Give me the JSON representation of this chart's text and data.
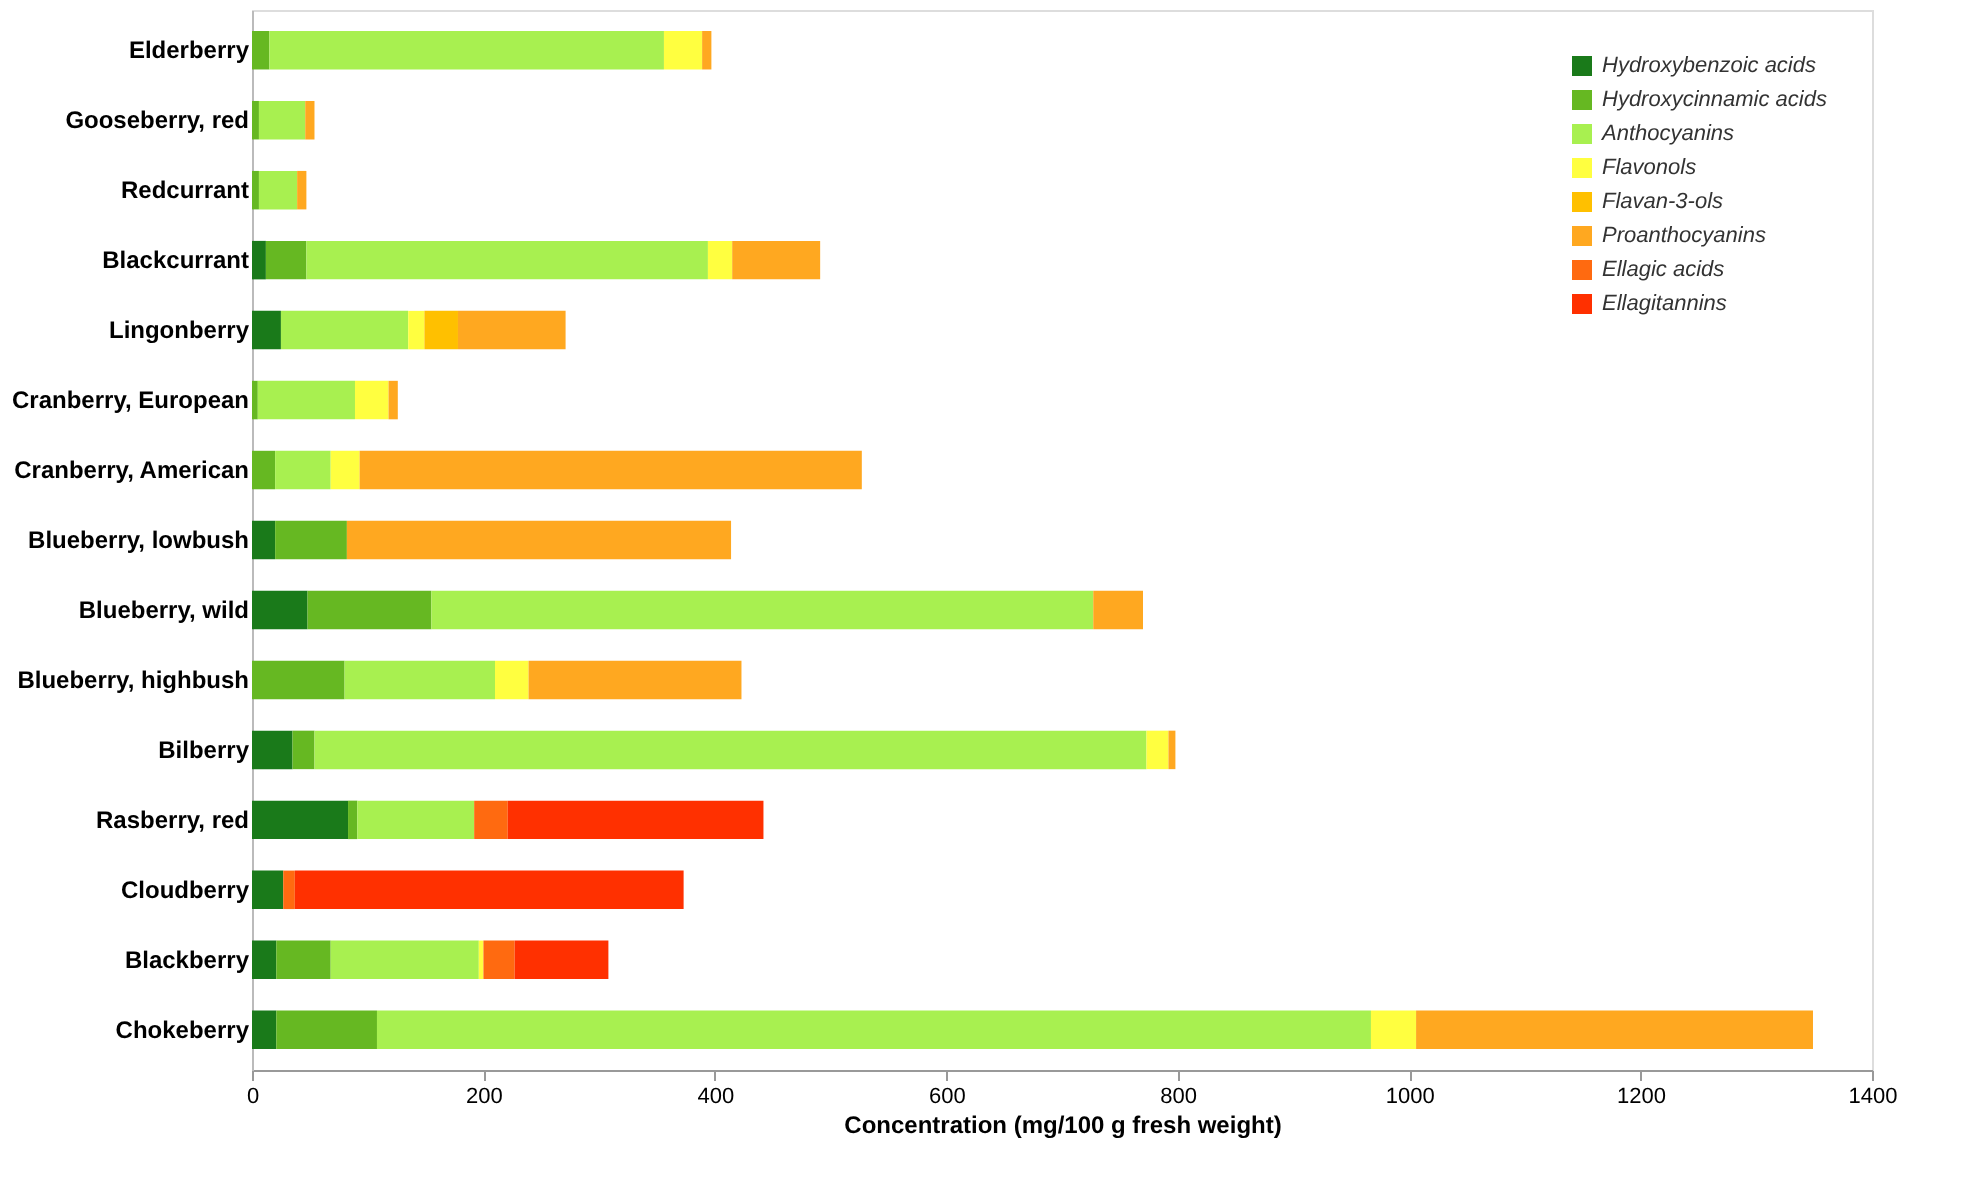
{
  "chart_data": {
    "type": "bar",
    "orientation": "horizontal",
    "stacked": true,
    "xlabel": "Concentration (mg/100 g fresh weight)",
    "categories": [
      "Elderberry",
      "Gooseberry, red",
      "Redcurrant",
      "Blackcurrant",
      "Lingonberry",
      "Cranberry, European",
      "Cranberry, American",
      "Blueberry, lowbush",
      "Blueberry, wild",
      "Blueberry, highbush",
      "Bilberry",
      "Rasberry, red",
      "Cloudberry",
      "Blackberry",
      "Chokeberry"
    ],
    "series": [
      {
        "name": "Hydroxybenzoic acids",
        "color": "#1a7a1a",
        "values": [
          null,
          null,
          null,
          12,
          25,
          null,
          null,
          20,
          48,
          null,
          35,
          83,
          27,
          21,
          21
        ]
      },
      {
        "name": "Hydroxycinnamic acids",
        "color": "#66b822",
        "values": [
          15,
          6,
          6,
          35,
          null,
          5,
          20,
          62,
          107,
          80,
          19,
          8,
          null,
          47,
          87
        ]
      },
      {
        "name": "Anthocyanins",
        "color": "#a8f050",
        "values": [
          341,
          40,
          33,
          347,
          110,
          84,
          48,
          null,
          572,
          130,
          719,
          101,
          null,
          128,
          859
        ]
      },
      {
        "name": "Flavonols",
        "color": "#ffff40",
        "values": [
          33,
          null,
          null,
          21,
          14,
          29,
          25,
          null,
          null,
          29,
          19,
          null,
          null,
          4,
          39
        ]
      },
      {
        "name": "Flavan-3-ols",
        "color": "#ffc000",
        "values": [
          null,
          null,
          null,
          null,
          29,
          null,
          null,
          null,
          null,
          null,
          null,
          null,
          null,
          null,
          null
        ]
      },
      {
        "name": "Proanthocyanins",
        "color": "#ffa820",
        "values": [
          8,
          8,
          8,
          76,
          93,
          8,
          434,
          332,
          43,
          184,
          6,
          null,
          null,
          null,
          343
        ]
      },
      {
        "name": "Ellagic acids",
        "color": "#ff6a10",
        "values": [
          null,
          null,
          null,
          null,
          null,
          null,
          null,
          null,
          null,
          null,
          null,
          29,
          10,
          27,
          null
        ]
      },
      {
        "name": "Ellagitannins",
        "color": "#ff3000",
        "values": [
          null,
          null,
          null,
          null,
          null,
          null,
          null,
          null,
          null,
          null,
          null,
          221,
          336,
          81,
          null
        ]
      }
    ],
    "xlim": [
      0,
      1400
    ],
    "xticks": [
      0,
      200,
      400,
      600,
      800,
      1000,
      1200,
      1400
    ],
    "grid": false,
    "legend": "top right"
  }
}
